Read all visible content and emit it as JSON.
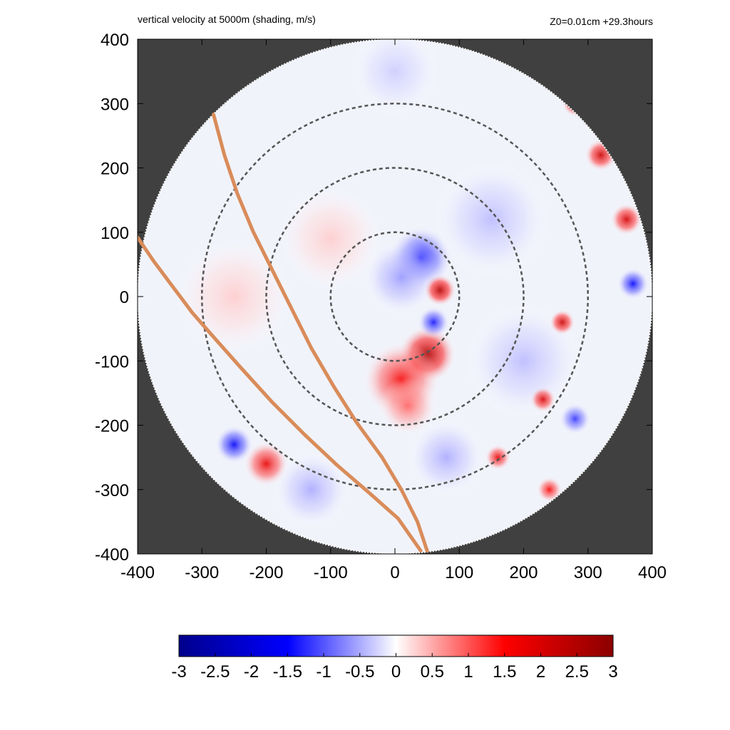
{
  "header": {
    "title": "vertical velocity at 5000m (shading, m/s)",
    "run_info": "Z0=0.01cm  +29.3hours"
  },
  "chart_data": {
    "type": "heatmap",
    "title": "vertical velocity at 5000m (shading, m/s)",
    "annotation": "Z0=0.01cm  +29.3hours",
    "xlabel": "",
    "ylabel": "",
    "xlim": [
      -400,
      400
    ],
    "ylim": [
      -400,
      400
    ],
    "xticks": [
      "-400",
      "-300",
      "-200",
      "-100",
      "0",
      "100",
      "200",
      "300",
      "400"
    ],
    "yticks": [
      "400",
      "300",
      "200",
      "100",
      "0",
      "-100",
      "-200",
      "-300",
      "-400"
    ],
    "domain_radius": 400,
    "range_rings": [
      100,
      200,
      300
    ],
    "track_lines": [
      {
        "points": [
          [
            -282,
            283
          ],
          [
            -265,
            220
          ],
          [
            -245,
            160
          ],
          [
            -220,
            100
          ],
          [
            -190,
            40
          ],
          [
            -160,
            -20
          ],
          [
            -130,
            -80
          ],
          [
            -95,
            -140
          ],
          [
            -60,
            -195
          ],
          [
            -20,
            -250
          ],
          [
            10,
            -300
          ],
          [
            35,
            -350
          ],
          [
            50,
            -395
          ]
        ]
      },
      {
        "points": [
          [
            -400,
            92
          ],
          [
            -375,
            55
          ],
          [
            -345,
            15
          ],
          [
            -315,
            -25
          ],
          [
            -280,
            -65
          ],
          [
            -240,
            -110
          ],
          [
            -190,
            -165
          ],
          [
            -140,
            -215
          ],
          [
            -90,
            -262
          ],
          [
            -40,
            -305
          ],
          [
            5,
            -345
          ],
          [
            40,
            -395
          ]
        ]
      }
    ],
    "colorbar": {
      "min": -3,
      "max": 3,
      "ticks": [
        "-3",
        "-2.5",
        "-2",
        "-1.5",
        "-1",
        "-0.5",
        "0",
        "0.5",
        "1",
        "1.5",
        "2",
        "2.5",
        "3"
      ],
      "colors": [
        "#00008b",
        "#0000ff",
        "#ffffff",
        "#ff0000",
        "#8b0000"
      ]
    },
    "colors": {
      "outside_domain": "#404040",
      "background_field": "#f1f3fb",
      "ring": "#555555",
      "track": "#d98c5a"
    },
    "features": [
      {
        "x": 40,
        "y": 60,
        "v": -1.5,
        "r": 50
      },
      {
        "x": 10,
        "y": 30,
        "v": -0.6,
        "r": 60
      },
      {
        "x": 70,
        "y": 10,
        "v": 2.5,
        "r": 25
      },
      {
        "x": 50,
        "y": -90,
        "v": 2.6,
        "r": 45
      },
      {
        "x": 10,
        "y": -130,
        "v": 1.6,
        "r": 60
      },
      {
        "x": 20,
        "y": -170,
        "v": 0.9,
        "r": 45
      },
      {
        "x": 60,
        "y": -40,
        "v": -1.4,
        "r": 25
      },
      {
        "x": -100,
        "y": 90,
        "v": 0.3,
        "r": 80
      },
      {
        "x": 150,
        "y": 120,
        "v": -0.4,
        "r": 90
      },
      {
        "x": 200,
        "y": -100,
        "v": -0.4,
        "r": 90
      },
      {
        "x": 80,
        "y": -250,
        "v": -0.5,
        "r": 60
      },
      {
        "x": -250,
        "y": -230,
        "v": -1.6,
        "r": 30
      },
      {
        "x": -200,
        "y": -260,
        "v": 1.8,
        "r": 35
      },
      {
        "x": -130,
        "y": -300,
        "v": -0.5,
        "r": 60
      },
      {
        "x": 280,
        "y": 300,
        "v": 2.4,
        "r": 20
      },
      {
        "x": 320,
        "y": 220,
        "v": 2.2,
        "r": 25
      },
      {
        "x": 360,
        "y": 120,
        "v": 2.1,
        "r": 25
      },
      {
        "x": 370,
        "y": 20,
        "v": -1.5,
        "r": 25
      },
      {
        "x": 260,
        "y": -40,
        "v": 2.2,
        "r": 20
      },
      {
        "x": 230,
        "y": -160,
        "v": 2.0,
        "r": 20
      },
      {
        "x": 280,
        "y": -190,
        "v": -1.2,
        "r": 25
      },
      {
        "x": 160,
        "y": -250,
        "v": 1.8,
        "r": 20
      },
      {
        "x": 240,
        "y": -300,
        "v": 1.6,
        "r": 20
      },
      {
        "x": -250,
        "y": 0,
        "v": 0.3,
        "r": 90
      },
      {
        "x": 0,
        "y": 350,
        "v": -0.3,
        "r": 70
      }
    ]
  }
}
